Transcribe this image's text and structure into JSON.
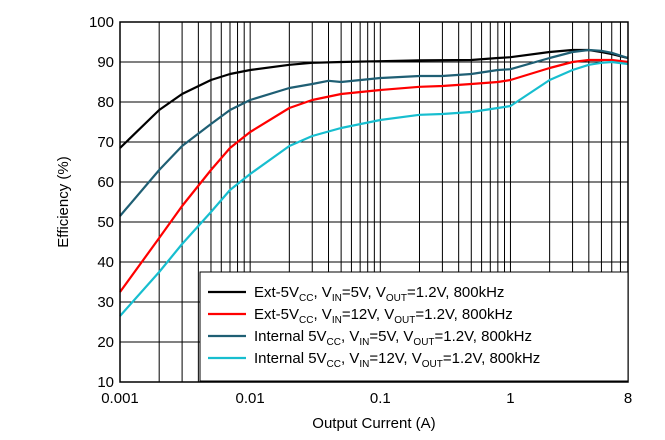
{
  "chart_data": {
    "type": "line",
    "title": "",
    "xlabel": "Output Current (A)",
    "ylabel": "Efficiency (%)",
    "xscale": "log",
    "xlim": [
      0.001,
      8
    ],
    "ylim": [
      10,
      100
    ],
    "x_ticks": [
      "0.001",
      "0.01",
      "0.1",
      "1",
      "8"
    ],
    "y_ticks": [
      "10",
      "20",
      "30",
      "40",
      "50",
      "60",
      "70",
      "80",
      "90",
      "100"
    ],
    "grid": true,
    "legend_position": "bottom-right",
    "series": [
      {
        "color": "#000000",
        "label": {
          "pre": "Ext-5V",
          "sub1": "CC",
          "mid1": ", V",
          "sub2": "IN",
          "mid2": "=5V, V",
          "sub3": "OUT",
          "post": "=1.2V, 800kHz"
        },
        "points": [
          [
            0.001,
            68.5
          ],
          [
            0.002,
            78
          ],
          [
            0.003,
            82
          ],
          [
            0.005,
            85.5
          ],
          [
            0.007,
            87
          ],
          [
            0.01,
            88
          ],
          [
            0.02,
            89.3
          ],
          [
            0.03,
            89.8
          ],
          [
            0.05,
            90
          ],
          [
            0.1,
            90.2
          ],
          [
            0.2,
            90.4
          ],
          [
            0.5,
            90.5
          ],
          [
            0.8,
            91
          ],
          [
            1,
            91.2
          ],
          [
            2,
            92.5
          ],
          [
            3,
            93
          ],
          [
            4,
            93
          ],
          [
            5,
            92.5
          ],
          [
            6,
            92
          ],
          [
            8,
            91
          ]
        ]
      },
      {
        "color": "#ff0000",
        "label": {
          "pre": "Ext-5V",
          "sub1": "CC",
          "mid1": ", V",
          "sub2": "IN",
          "mid2": "=12V, V",
          "sub3": "OUT",
          "post": "=1.2V, 800kHz"
        },
        "points": [
          [
            0.001,
            32.5
          ],
          [
            0.002,
            46
          ],
          [
            0.003,
            54
          ],
          [
            0.005,
            63
          ],
          [
            0.007,
            68.5
          ],
          [
            0.01,
            72.5
          ],
          [
            0.02,
            78.5
          ],
          [
            0.03,
            80.5
          ],
          [
            0.05,
            82
          ],
          [
            0.1,
            83
          ],
          [
            0.2,
            83.8
          ],
          [
            0.3,
            84
          ],
          [
            0.5,
            84.5
          ],
          [
            0.8,
            85
          ],
          [
            1,
            85.5
          ],
          [
            2,
            88.5
          ],
          [
            3,
            90
          ],
          [
            4,
            90.5
          ],
          [
            5,
            90.5
          ],
          [
            6,
            90.5
          ],
          [
            8,
            90
          ]
        ]
      },
      {
        "color": "#1f5f74",
        "label": {
          "pre": "Internal 5V",
          "sub1": "CC",
          "mid1": ", V",
          "sub2": "IN",
          "mid2": "=5V, V",
          "sub3": "OUT",
          "post": "=1.2V, 800kHz"
        },
        "points": [
          [
            0.001,
            51.5
          ],
          [
            0.002,
            63
          ],
          [
            0.003,
            69
          ],
          [
            0.005,
            74.5
          ],
          [
            0.007,
            78
          ],
          [
            0.01,
            80.5
          ],
          [
            0.02,
            83.5
          ],
          [
            0.03,
            84.5
          ],
          [
            0.04,
            85.3
          ],
          [
            0.05,
            85
          ],
          [
            0.1,
            86
          ],
          [
            0.2,
            86.5
          ],
          [
            0.3,
            86.5
          ],
          [
            0.5,
            87
          ],
          [
            0.8,
            88
          ],
          [
            1,
            88.2
          ],
          [
            2,
            91
          ],
          [
            3,
            92.5
          ],
          [
            4,
            93
          ],
          [
            5,
            92.8
          ],
          [
            6,
            92.3
          ],
          [
            8,
            91
          ]
        ]
      },
      {
        "color": "#17becf",
        "label": {
          "pre": "Internal 5V",
          "sub1": "CC",
          "mid1": ", V",
          "sub2": "IN",
          "mid2": "=12V, V",
          "sub3": "OUT",
          "post": "=1.2V, 800kHz"
        },
        "points": [
          [
            0.001,
            26.5
          ],
          [
            0.002,
            37.5
          ],
          [
            0.003,
            44.5
          ],
          [
            0.005,
            52.5
          ],
          [
            0.007,
            58
          ],
          [
            0.01,
            62
          ],
          [
            0.02,
            69
          ],
          [
            0.03,
            71.5
          ],
          [
            0.05,
            73.5
          ],
          [
            0.1,
            75.5
          ],
          [
            0.2,
            76.8
          ],
          [
            0.3,
            77
          ],
          [
            0.5,
            77.5
          ],
          [
            0.8,
            78.5
          ],
          [
            1,
            79
          ],
          [
            2,
            85.5
          ],
          [
            3,
            88
          ],
          [
            4,
            89.3
          ],
          [
            5,
            89.8
          ],
          [
            6,
            90
          ],
          [
            8,
            89.5
          ]
        ]
      }
    ]
  }
}
